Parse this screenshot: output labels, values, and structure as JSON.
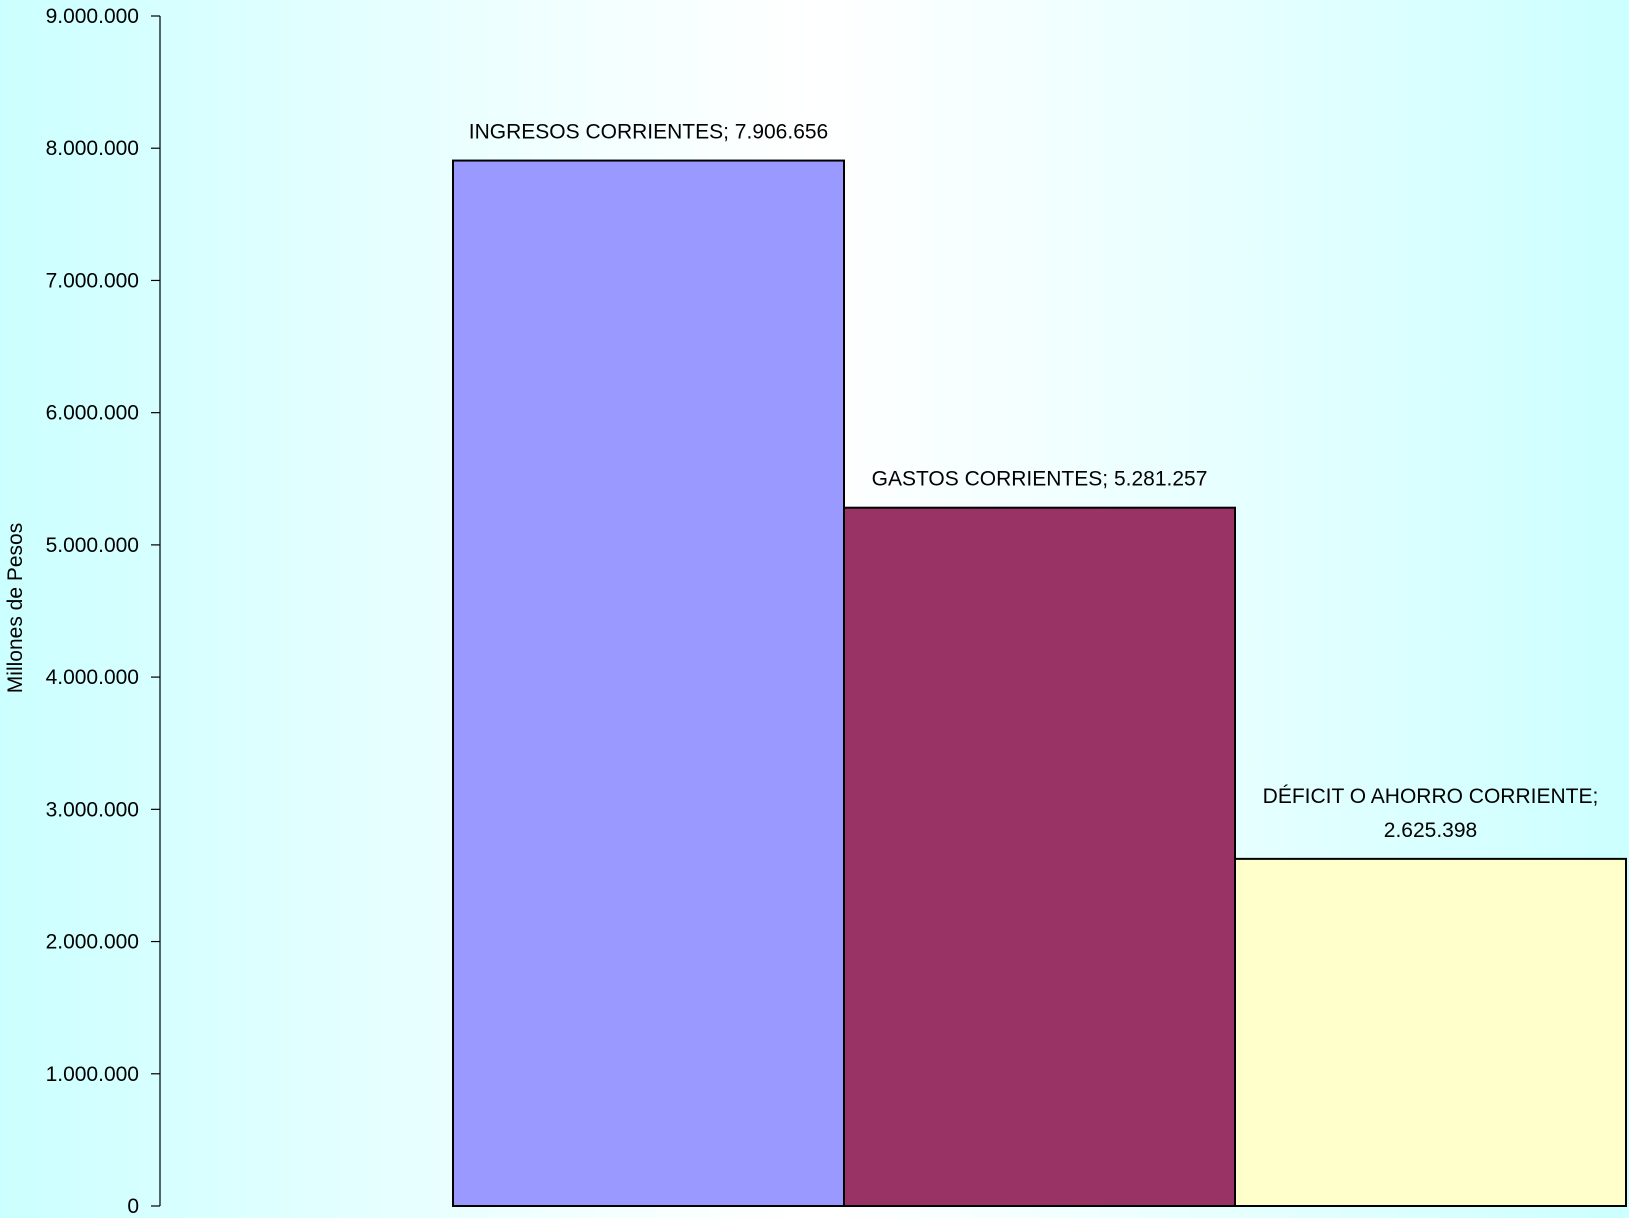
{
  "chart_data": {
    "type": "bar",
    "categories": [
      "INGRESOS CORRIENTES",
      "GASTOS CORRIENTES",
      "DÉFICIT O AHORRO CORRIENTE"
    ],
    "values": [
      7906656,
      5281257,
      2625398
    ],
    "data_labels": [
      [
        "INGRESOS CORRIENTES; 7.906.656"
      ],
      [
        "GASTOS CORRIENTES; 5.281.257"
      ],
      [
        "DÉFICIT O AHORRO CORRIENTE;",
        "2.625.398"
      ]
    ],
    "colors": [
      "#9999ff",
      "#993366",
      "#ffffcc"
    ],
    "title": "",
    "xlabel": "",
    "ylabel": "Millones de Pesos",
    "ylim": [
      0,
      9000000
    ],
    "yticks": [
      0,
      1000000,
      2000000,
      3000000,
      4000000,
      5000000,
      6000000,
      7000000,
      8000000,
      9000000
    ],
    "ytick_labels": [
      "0",
      "1.000.000",
      "2.000.000",
      "3.000.000",
      "4.000.000",
      "5.000.000",
      "6.000.000",
      "7.000.000",
      "8.000.000",
      "9.000.000"
    ],
    "grid": false,
    "legend": "none"
  }
}
